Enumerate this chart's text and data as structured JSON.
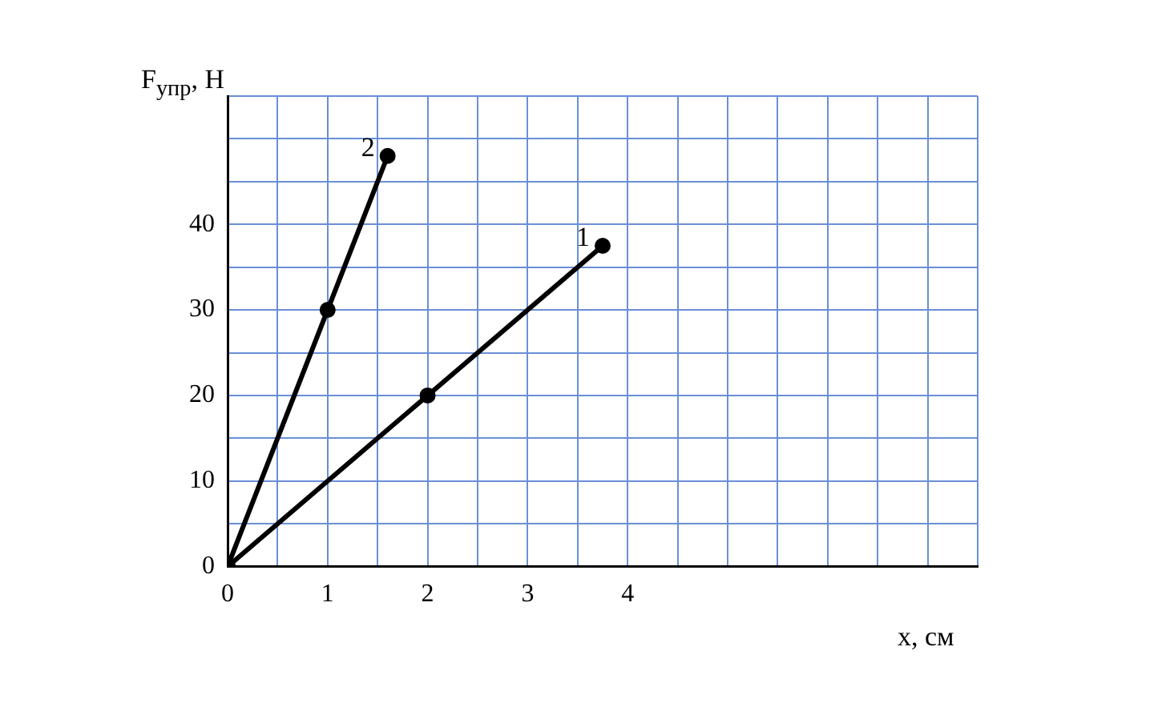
{
  "chart_data": {
    "type": "line",
    "xlabel": "x, см",
    "ylabel": "F$_{упр}$, Н",
    "series": [
      {
        "name": "1",
        "color": "#000000",
        "x": [
          0,
          2,
          3.75
        ],
        "values": [
          0,
          20,
          37.5
        ]
      },
      {
        "name": "2",
        "color": "#000000",
        "x": [
          0,
          1,
          1.6
        ],
        "values": [
          0,
          30,
          48
        ]
      }
    ],
    "xlim": [
      0,
      7.5
    ],
    "ylim": [
      0,
      55
    ],
    "xticks": [
      0,
      {
        "value": 0.5,
        "label": null
      },
      1,
      {
        "value": 1.5,
        "label": null
      },
      2,
      {
        "value": 2.5,
        "label": null
      },
      3,
      {
        "value": 3.5,
        "label": null
      },
      4,
      {
        "value": 4.5,
        "label": null
      },
      {
        "value": 5,
        "label": null
      },
      {
        "value": 5.5,
        "label": null
      },
      {
        "value": 6,
        "label": null
      },
      {
        "value": 6.5,
        "label": null
      },
      {
        "value": 7,
        "label": null
      },
      {
        "value": 7.5,
        "label": null
      }
    ],
    "yticks": [
      0,
      {
        "value": 5,
        "label": null
      },
      10,
      {
        "value": 15,
        "label": null
      },
      20,
      {
        "value": 25,
        "label": null
      },
      30,
      {
        "value": 35,
        "label": null
      },
      40,
      {
        "value": 45,
        "label": null
      },
      {
        "value": 50,
        "label": null
      },
      {
        "value": 55,
        "label": null
      }
    ],
    "grid": true,
    "legend": false,
    "marker": "circle",
    "line_style": "solid"
  }
}
